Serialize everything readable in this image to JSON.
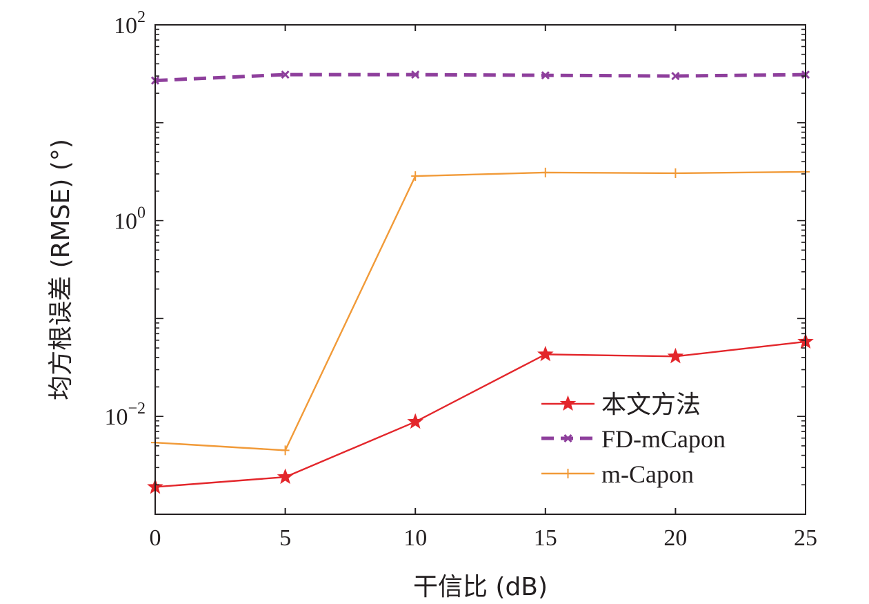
{
  "chart_data": {
    "type": "line",
    "xlabel": "干信比 (dB)",
    "ylabel": "均方根误差 (RMSE) (°)",
    "yscale": "log",
    "xlim": [
      0,
      25
    ],
    "ylim": [
      0.001,
      100
    ],
    "x_ticks": [
      {
        "value": 0,
        "label": "0"
      },
      {
        "value": 5,
        "label": "5"
      },
      {
        "value": 10,
        "label": "10"
      },
      {
        "value": 15,
        "label": "15"
      },
      {
        "value": 20,
        "label": "20"
      },
      {
        "value": 25,
        "label": "25"
      }
    ],
    "y_ticks": [
      {
        "value": 0.01,
        "base": "10",
        "exp": "−2"
      },
      {
        "value": 1,
        "base": "10",
        "exp": "0"
      },
      {
        "value": 100,
        "base": "10",
        "exp": "2"
      }
    ],
    "grid": false,
    "legend_position": "bottom-right",
    "series": [
      {
        "name": "本文方法",
        "color": "#e3262b",
        "marker": "star",
        "line": "solid",
        "x": [
          0,
          5,
          10,
          15,
          20,
          25
        ],
        "y": [
          0.0019,
          0.0024,
          0.0088,
          0.043,
          0.041,
          0.058
        ]
      },
      {
        "name": "FD-mCapon",
        "color": "#8e3f9c",
        "marker": "x",
        "line": "dashed",
        "x": [
          0,
          5,
          10,
          15,
          20,
          25
        ],
        "y": [
          27,
          31,
          31,
          30.5,
          30,
          31
        ]
      },
      {
        "name": "m-Capon",
        "color": "#f19a38",
        "marker": "plus",
        "line": "solid",
        "x": [
          0,
          5,
          10,
          15,
          20,
          25
        ],
        "y": [
          0.0054,
          0.0045,
          2.85,
          3.1,
          3.05,
          3.15
        ]
      }
    ]
  }
}
